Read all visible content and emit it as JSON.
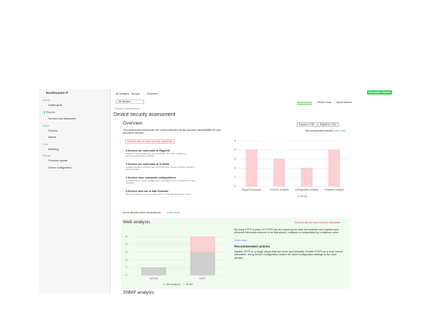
{
  "header": {
    "logo": "EcoStruxure IT",
    "breadcrumb": [
      "All locations",
      "Europe",
      "Denmark"
    ],
    "selector": "All devices",
    "tabs": [
      "Assessments",
      "Device risks",
      "Asset failures"
    ],
    "brand": "Schneider Electric"
  },
  "sidebar": [
    {
      "label": "Monitor",
      "kind": "section"
    },
    {
      "label": "Dashboards",
      "kind": "item"
    },
    {
      "label": "Reports",
      "kind": "active"
    },
    {
      "label": "Services and Warranties",
      "kind": "item"
    },
    {
      "label": "Assets",
      "kind": "section"
    },
    {
      "label": "Devices",
      "kind": "item"
    },
    {
      "label": "Alarms",
      "kind": "item"
    },
    {
      "label": "Tools",
      "kind": "section"
    },
    {
      "label": "Modeling",
      "kind": "item"
    },
    {
      "label": "Manage",
      "kind": "section"
    },
    {
      "label": "Firmware update",
      "kind": "item"
    },
    {
      "label": "Device configuration",
      "kind": "item"
    }
  ],
  "page": {
    "back": "< Device assessments",
    "title": "Device security assessment",
    "overview": "Overview",
    "export_pdf": "Export to PDF",
    "export_csv": "Export to CSV",
    "unexpected": "See unexpected results?",
    "learn_more": "Learn more",
    "intro": "This assessment represents the current detected device security vulnerabilities for your document devices.",
    "warning": "Devices did not meet security standards",
    "findings": [
      {
        "title": "4 Devices are vulnerable to Ripple20",
        "text": "Ripple20 vulnerabilities are recommended. Firmware updates is recommended where possible."
      },
      {
        "title": "3 Devices are vulnerable to TLS/SSL",
        "text": "Update mitigation solutions are recommended. Device firmware update is recommended."
      },
      {
        "title": "2 Devices have vulnerable configurations",
        "text": "Configuration is recommended when vulnerable device configurations are detected."
      },
      {
        "title": "4 Devices with out of date firmware",
        "text": "Firmware update is recommended when vulnerable firmware is found."
      }
    ],
    "not_analysed": "Some devices were not analysed.",
    "web": {
      "warning": "Devices did not meet security standards",
      "text": "By using HTTP in place of HTTPS you are exposing the data that switches and explains your personal information devices to be intercepted, replayed or manipulated by a malicious actor.",
      "more": "Show more",
      "actions_title": "Recommended actions",
      "actions": "Disable HTTP on a single device that can serve as a template. Enable HTTPS as a more secure alternative. Using Device Configuration restore the latest configuration settings to the other devices."
    },
    "snmp": "SNMP analysis"
  },
  "chart_data": [
    {
      "type": "bar",
      "categories": [
        "Ripple20 analysis",
        "TLS/SSL analysis",
        "Configuration analysis",
        "Firmware analysis"
      ],
      "series": [
        {
          "name": "At risk",
          "color": "#fbd0d3",
          "values": [
            4,
            3,
            2,
            4
          ]
        }
      ],
      "ylim": [
        0,
        5
      ],
      "yticks": [
        0,
        1,
        2,
        3,
        4,
        5
      ]
    },
    {
      "type": "stacked_bar",
      "title": "Web analysis",
      "categories": [
        "HTTPS",
        "HTTP"
      ],
      "series": [
        {
          "name": "Not analyzed",
          "color": "#cfcfcf",
          "values": [
            1,
            3
          ]
        },
        {
          "name": "At risk",
          "color": "#fbd0d3",
          "values": [
            0,
            2
          ]
        }
      ],
      "ylim": [
        0,
        5
      ],
      "yticks": [
        0,
        1,
        2,
        3,
        4,
        5
      ]
    }
  ]
}
